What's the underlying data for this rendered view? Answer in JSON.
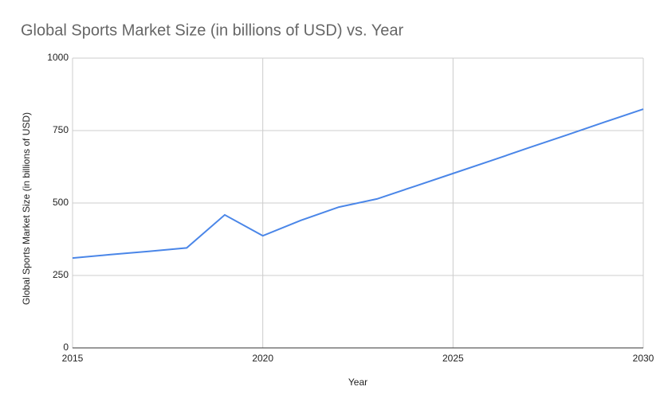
{
  "chart_data": {
    "type": "line",
    "title": "Global Sports Market Size (in billions of USD) vs. Year",
    "x_label": "Year",
    "y_label": "Global Sports Market Size (in billions of USD)",
    "x": [
      2015,
      2016,
      2017,
      2018,
      2019,
      2020,
      2021,
      2022,
      2023,
      2024,
      2025,
      2026,
      2027,
      2028,
      2029,
      2030
    ],
    "series": [
      {
        "name": "Global Sports Market Size (in billions of USD)",
        "color": "#4a86e8",
        "values": [
          310,
          322,
          333,
          345,
          459,
          387,
          440,
          486,
          514,
          558,
          602,
          646,
          691,
          735,
          780,
          824
        ]
      }
    ],
    "xlim": [
      2015,
      2030
    ],
    "xticks": [
      2015,
      2020,
      2025,
      2030
    ],
    "ylim": [
      0,
      1000
    ],
    "yticks": [
      0,
      250,
      500,
      750,
      1000
    ],
    "grid": true
  }
}
